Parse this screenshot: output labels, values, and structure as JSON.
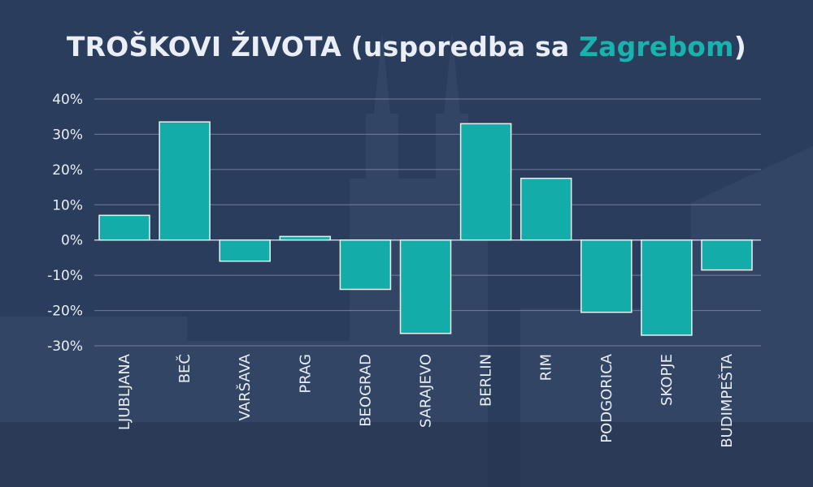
{
  "title": {
    "prefix": "TROŠKOVI ŽIVOTA (usporedba sa ",
    "highlight": "Zagrebom",
    "suffix": ")"
  },
  "colors": {
    "background": "#2b3d5c",
    "bar_fill": "#14aca9",
    "bar_stroke": "#e8f1f8",
    "title_highlight": "#17b3ad",
    "text": "#e9eef7"
  },
  "chart_data": {
    "type": "bar",
    "title": "TROŠKOVI ŽIVOTA (usporedba sa Zagrebom)",
    "categories": [
      "LJUBLJANA",
      "BEČ",
      "VARŠAVA",
      "PRAG",
      "BEOGRAD",
      "SARAJEVO",
      "BERLIN",
      "RIM",
      "PODGORICA",
      "SKOPJE",
      "BUDIMPEŠTA"
    ],
    "values": [
      7,
      33.5,
      -6,
      1,
      -14,
      -26.5,
      33,
      17.5,
      -20.5,
      -27,
      -8.5
    ],
    "ylim": [
      -30,
      40
    ],
    "yticks": [
      40,
      30,
      20,
      10,
      0,
      -10,
      -20,
      -30
    ],
    "ytick_labels": [
      "40%",
      "30%",
      "20%",
      "10%",
      "0%",
      "-10%",
      "-20%",
      "-30%"
    ],
    "grid": true,
    "xlabel": "",
    "ylabel": ""
  }
}
